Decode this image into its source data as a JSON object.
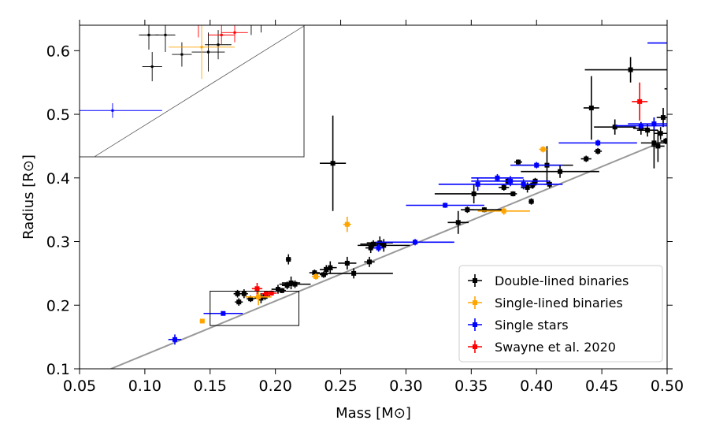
{
  "chart_data": {
    "type": "scatter",
    "title": "",
    "xlabel": "Mass [M⊙]",
    "ylabel": "Radius [R⊙]",
    "xlim": [
      0.05,
      0.5
    ],
    "ylim": [
      0.1,
      0.64
    ],
    "x_ticks": [
      "0.05",
      "0.10",
      "0.15",
      "0.20",
      "0.25",
      "0.30",
      "0.35",
      "0.40",
      "0.45",
      "0.50"
    ],
    "y_ticks": [
      "0.1",
      "0.2",
      "0.3",
      "0.4",
      "0.5",
      "0.6"
    ],
    "grid": false,
    "legend_position": "bottom-right",
    "relation_line": [
      [
        0.074,
        0.1
      ],
      [
        0.5,
        0.46
      ]
    ],
    "relation_color": "#999999",
    "zoom_box": {
      "x": [
        0.15,
        0.218
      ],
      "y": [
        0.168,
        0.222
      ]
    },
    "series": [
      {
        "name": "Double-lined binaries",
        "color": "#000000",
        "points": [
          [
            0.171,
            0.218,
            0.003,
            0.006
          ],
          [
            0.172,
            0.205,
            0.003,
            0.006
          ],
          [
            0.176,
            0.218,
            0.003,
            0.007
          ],
          [
            0.181,
            0.21,
            0.003,
            0.005
          ],
          [
            0.189,
            0.211,
            0.005,
            0.008
          ],
          [
            0.192,
            0.214,
            0.004,
            0.006
          ],
          [
            0.202,
            0.225,
            0.005,
            0.007
          ],
          [
            0.205,
            0.223,
            0.003,
            0.004
          ],
          [
            0.209,
            0.231,
            0.004,
            0.006
          ],
          [
            0.21,
            0.272,
            0.002,
            0.008
          ],
          [
            0.212,
            0.235,
            0.007,
            0.01
          ],
          [
            0.215,
            0.233,
            0.012,
            0.006
          ],
          [
            0.23,
            0.251,
            0.004,
            0.005
          ],
          [
            0.237,
            0.248,
            0.003,
            0.005
          ],
          [
            0.239,
            0.256,
            0.005,
            0.007
          ],
          [
            0.242,
            0.259,
            0.005,
            0.01
          ],
          [
            0.244,
            0.423,
            0.01,
            0.075
          ],
          [
            0.255,
            0.266,
            0.007,
            0.01
          ],
          [
            0.26,
            0.25,
            0.03,
            0.008
          ],
          [
            0.272,
            0.268,
            0.004,
            0.008
          ],
          [
            0.273,
            0.29,
            0.004,
            0.008
          ],
          [
            0.275,
            0.296,
            0.01,
            0.006
          ],
          [
            0.28,
            0.298,
            0.01,
            0.01
          ],
          [
            0.283,
            0.294,
            0.02,
            0.01
          ],
          [
            0.34,
            0.33,
            0.008,
            0.018
          ],
          [
            0.347,
            0.35,
            0.005,
            0.005
          ],
          [
            0.352,
            0.375,
            0.03,
            0.015
          ],
          [
            0.36,
            0.35,
            0.015,
            0.004
          ],
          [
            0.375,
            0.385,
            0.004,
            0.005
          ],
          [
            0.378,
            0.395,
            0.004,
            0.005
          ],
          [
            0.382,
            0.375,
            0.003,
            0.004
          ],
          [
            0.386,
            0.425,
            0.003,
            0.004
          ],
          [
            0.393,
            0.385,
            0.005,
            0.008
          ],
          [
            0.396,
            0.363,
            0.002,
            0.005
          ],
          [
            0.397,
            0.389,
            0.003,
            0.006
          ],
          [
            0.399,
            0.395,
            0.003,
            0.005
          ],
          [
            0.408,
            0.42,
            0.02,
            0.03
          ],
          [
            0.41,
            0.39,
            0.004,
            0.006
          ],
          [
            0.418,
            0.41,
            0.03,
            0.01
          ],
          [
            0.438,
            0.43,
            0.004,
            0.005
          ],
          [
            0.442,
            0.51,
            0.006,
            0.05
          ],
          [
            0.447,
            0.442,
            0.003,
            0.005
          ],
          [
            0.46,
            0.48,
            0.016,
            0.012
          ],
          [
            0.472,
            0.57,
            0.035,
            0.02
          ],
          [
            0.48,
            0.478,
            0.006,
            0.01
          ],
          [
            0.485,
            0.475,
            0.008,
            0.01
          ],
          [
            0.49,
            0.455,
            0.01,
            0.04
          ],
          [
            0.493,
            0.45,
            0.005,
            0.025
          ],
          [
            0.495,
            0.47,
            0.005,
            0.01
          ],
          [
            0.497,
            0.495,
            0.005,
            0.015
          ],
          [
            0.499,
            0.458,
            0.004,
            0.005
          ]
        ]
      },
      {
        "name": "Single-lined binaries",
        "color": "#ffa500",
        "points": [
          [
            0.144,
            0.175,
            0.002,
            0.003
          ],
          [
            0.187,
            0.213,
            0.01,
            0.013
          ],
          [
            0.231,
            0.245,
            0.003,
            0.005
          ],
          [
            0.255,
            0.327,
            0.003,
            0.012
          ],
          [
            0.375,
            0.348,
            0.02,
            0.006
          ],
          [
            0.405,
            0.445,
            0.003,
            0.005
          ]
        ]
      },
      {
        "name": "Single stars",
        "color": "#0000ff",
        "points": [
          [
            0.123,
            0.146,
            0.005,
            0.008
          ],
          [
            0.16,
            0.187,
            0.015,
            0.003
          ],
          [
            0.279,
            0.29,
            0.004,
            0.006
          ],
          [
            0.307,
            0.299,
            0.03,
            0.005
          ],
          [
            0.33,
            0.357,
            0.03,
            0.004
          ],
          [
            0.355,
            0.39,
            0.03,
            0.01
          ],
          [
            0.37,
            0.4,
            0.02,
            0.006
          ],
          [
            0.38,
            0.395,
            0.03,
            0.008
          ],
          [
            0.39,
            0.39,
            0.03,
            0.008
          ],
          [
            0.4,
            0.42,
            0.02,
            0.005
          ],
          [
            0.447,
            0.455,
            0.03,
            0.005
          ],
          [
            0.48,
            0.482,
            0.02,
            0.005
          ],
          [
            0.49,
            0.485,
            0.02,
            0.01
          ]
        ]
      },
      {
        "name": "Swayne et al. 2020",
        "color": "#ff0000",
        "points": [
          [
            0.186,
            0.226,
            0.004,
            0.009
          ],
          [
            0.193,
            0.218,
            0.004,
            0.004
          ],
          [
            0.197,
            0.219,
            0.004,
            0.004
          ],
          [
            0.479,
            0.52,
            0.006,
            0.03
          ]
        ]
      }
    ],
    "outlier_segments": [
      {
        "series": "Single stars",
        "x0": 0.485,
        "x1": 0.5,
        "y": 0.612
      },
      {
        "series": "Double-lined binaries",
        "x0": 0.498,
        "x1": 0.5,
        "y": 0.54
      }
    ]
  }
}
